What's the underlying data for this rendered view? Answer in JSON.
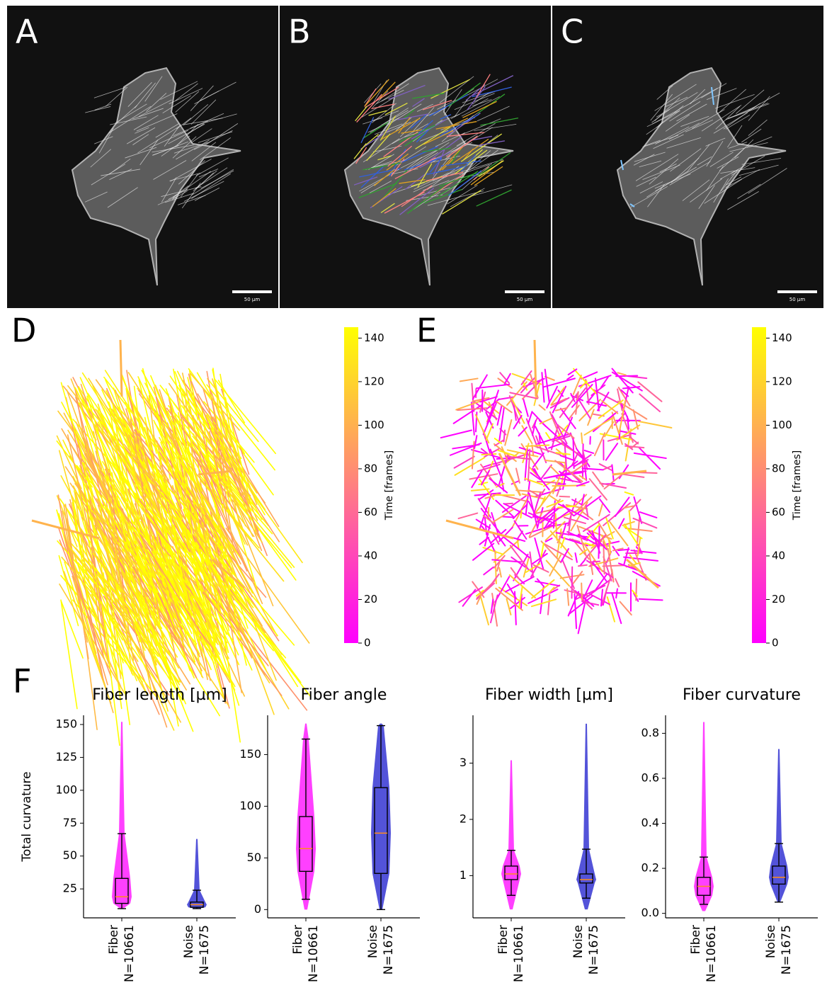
{
  "panels": {
    "labels": [
      "A",
      "B",
      "C",
      "D",
      "E",
      "F"
    ],
    "scale_bar": "50 µm",
    "colorbar": {
      "label": "Time [frames]",
      "lim": [
        0,
        145
      ],
      "ticks": [
        0,
        20,
        40,
        60,
        80,
        100,
        120,
        140
      ]
    }
  },
  "chart_data": [
    {
      "type": "box",
      "title": "Fiber length [µm]",
      "ylabel": "Total curvature",
      "categories": [
        "Fiber",
        "Noise"
      ],
      "category_counts": [
        "N=10661",
        "N=1675"
      ],
      "colors": [
        "#ff00ff",
        "#1a1acc"
      ],
      "ylim": [
        3,
        157
      ],
      "yticks": [
        25,
        50,
        75,
        100,
        125,
        150
      ],
      "boxes": [
        {
          "min": 10,
          "whislo": 10,
          "q1": 14,
          "med": 19,
          "q3": 33,
          "whishi": 67,
          "max": 152
        },
        {
          "min": 10,
          "whislo": 10,
          "q1": 11,
          "med": 13,
          "q3": 15,
          "whishi": 24,
          "max": 63
        }
      ]
    },
    {
      "type": "box",
      "title": "Fiber angle",
      "categories": [
        "Fiber",
        "Noise"
      ],
      "category_counts": [
        "N=10661",
        "N=1675"
      ],
      "colors": [
        "#ff00ff",
        "#1a1acc"
      ],
      "ylim": [
        -8,
        188
      ],
      "yticks": [
        0,
        50,
        100,
        150
      ],
      "boxes": [
        {
          "min": 0,
          "whislo": 10,
          "q1": 37,
          "med": 59,
          "q3": 90,
          "whishi": 165,
          "max": 180
        },
        {
          "min": 0,
          "whislo": 0,
          "q1": 35,
          "med": 74,
          "q3": 118,
          "whishi": 178,
          "max": 180
        }
      ]
    },
    {
      "type": "box",
      "title": "Fiber width [µm]",
      "categories": [
        "Fiber",
        "Noise"
      ],
      "category_counts": [
        "N=10661",
        "N=1675"
      ],
      "colors": [
        "#ff00ff",
        "#1a1acc"
      ],
      "ylim": [
        0.25,
        3.85
      ],
      "yticks": [
        1,
        2,
        3
      ],
      "boxes": [
        {
          "min": 0.4,
          "whislo": 0.65,
          "q1": 0.93,
          "med": 1.03,
          "q3": 1.17,
          "whishi": 1.45,
          "max": 3.05
        },
        {
          "min": 0.4,
          "whislo": 0.6,
          "q1": 0.87,
          "med": 0.93,
          "q3": 1.03,
          "whishi": 1.47,
          "max": 3.7
        }
      ]
    },
    {
      "type": "box",
      "title": "Fiber curvature",
      "categories": [
        "Fiber",
        "Noise"
      ],
      "category_counts": [
        "N=10661",
        "N=1675"
      ],
      "colors": [
        "#ff00ff",
        "#1a1acc"
      ],
      "ylim": [
        -0.02,
        0.88
      ],
      "yticks": [
        {
          "value": 0,
          "label": "0.0"
        },
        0.2,
        0.4,
        0.6,
        0.8
      ],
      "boxes": [
        {
          "min": 0.01,
          "whislo": 0.04,
          "q1": 0.08,
          "med": 0.12,
          "q3": 0.16,
          "whishi": 0.25,
          "max": 0.85
        },
        {
          "min": 0.05,
          "whislo": 0.05,
          "q1": 0.13,
          "med": 0.16,
          "q3": 0.21,
          "whishi": 0.31,
          "max": 0.73
        }
      ]
    }
  ]
}
